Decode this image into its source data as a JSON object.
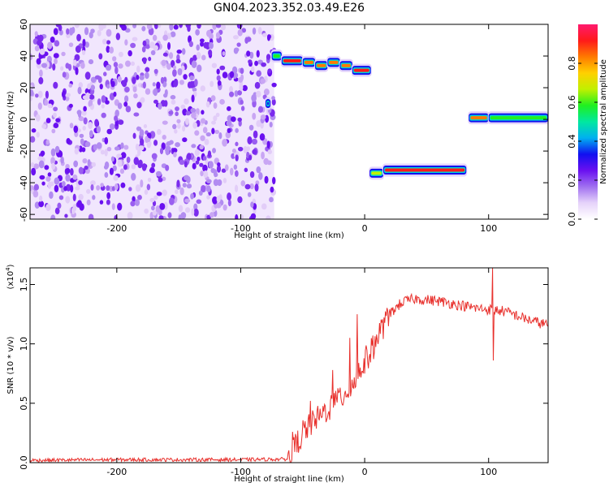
{
  "figure_title": "GN04.2023.352.03.49.E26",
  "chart_data": [
    {
      "type": "heatmap",
      "xlabel": "Height of straight line (km)",
      "ylabel": "Frequency (Hz)",
      "xlim": [
        -270,
        148
      ],
      "ylim": [
        -63,
        60
      ],
      "xticks": [
        -200,
        -100,
        0,
        100
      ],
      "yticks": [
        -60,
        -40,
        -20,
        0,
        20,
        40,
        60
      ],
      "colorbar": {
        "label": "Normalized spectral amplitude",
        "range": [
          0,
          1
        ],
        "ticks": [
          "0.0",
          "0.2",
          "0.4",
          "0.6",
          "0.8"
        ],
        "tick_values": [
          0,
          0.2,
          0.4,
          0.6,
          0.8
        ],
        "colormap": [
          "#ffffff",
          "#e6d3fa",
          "#a070f0",
          "#6a10f0",
          "#1010f0",
          "#00b0f0",
          "#00e8a0",
          "#20f020",
          "#c0f000",
          "#ffd000",
          "#ff7a00",
          "#ff1a1a",
          "#ff1a6e"
        ]
      },
      "noise_region": {
        "x_range": [
          -270,
          -73
        ],
        "y_range": [
          -63,
          60
        ],
        "amplitude_range": [
          0.05,
          0.3
        ]
      },
      "bands": [
        {
          "x_start": -80,
          "x_end": -76,
          "y": 10,
          "amplitude": 0.3
        },
        {
          "x_start": -75,
          "x_end": -67,
          "y": 40,
          "amplitude": 0.6
        },
        {
          "x_start": -67,
          "x_end": -50,
          "y": 37,
          "amplitude": 0.9
        },
        {
          "x_start": -50,
          "x_end": -40,
          "y": 36,
          "amplitude": 0.85
        },
        {
          "x_start": -40,
          "x_end": -30,
          "y": 34,
          "amplitude": 0.8
        },
        {
          "x_start": -30,
          "x_end": -20,
          "y": 36,
          "amplitude": 0.85
        },
        {
          "x_start": -20,
          "x_end": -10,
          "y": 34,
          "amplitude": 0.8
        },
        {
          "x_start": -10,
          "x_end": 5,
          "y": 31,
          "amplitude": 0.9
        },
        {
          "x_start": 4,
          "x_end": 15,
          "y": -34,
          "amplitude": 0.7
        },
        {
          "x_start": 15,
          "x_end": 82,
          "y": -32,
          "amplitude": 0.9
        },
        {
          "x_start": 84,
          "x_end": 100,
          "y": 1,
          "amplitude": 0.85
        },
        {
          "x_start": 100,
          "x_end": 148,
          "y": 1,
          "amplitude": 0.55
        }
      ]
    },
    {
      "type": "line",
      "xlabel": "Height of straight line (km)",
      "ylabel": "SNR (10 * v/v)",
      "scale_label": "(x10",
      "scale_exponent": "4",
      "scale_close": ")",
      "xlim": [
        -270,
        148
      ],
      "ylim": [
        0,
        16400
      ],
      "xticks": [
        -200,
        -100,
        0,
        100
      ],
      "yticks": [
        0,
        5000,
        10000,
        15000
      ],
      "ytick_labels": [
        "0.0",
        "0.5",
        "1.0",
        "1.5"
      ],
      "color": "#e8302c",
      "x": [
        -270,
        -200,
        -100,
        -60,
        -55,
        -50,
        -40,
        -30,
        -20,
        -10,
        0,
        10,
        20,
        30,
        40,
        50,
        60,
        70,
        80,
        90,
        100,
        110,
        120,
        130,
        140,
        148
      ],
      "y": [
        200,
        250,
        250,
        300,
        1500,
        2500,
        3500,
        4500,
        5500,
        6500,
        8500,
        10500,
        12500,
        13500,
        13800,
        13700,
        13600,
        13400,
        13200,
        13000,
        12900,
        12800,
        12500,
        12100,
        11800,
        11600
      ],
      "spikes": [
        {
          "x": -58,
          "y": 2600
        },
        {
          "x": -44,
          "y": 5200
        },
        {
          "x": -26,
          "y": 7800
        },
        {
          "x": -12,
          "y": 10500
        },
        {
          "x": -6,
          "y": 12500
        },
        {
          "x": 103,
          "y": 16400
        },
        {
          "x": 104,
          "y": 8600
        }
      ]
    }
  ]
}
